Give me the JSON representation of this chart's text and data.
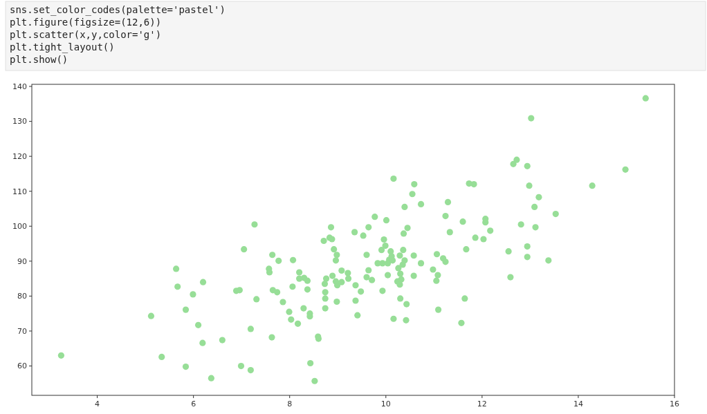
{
  "chart_data": {
    "type": "scatter",
    "annotations": [
      "sns.set_color_codes(palette='pastel')",
      "plt.figure(figsize=(12,6))",
      "plt.scatter(x,y,color='g')",
      "plt.tight_layout()",
      "plt.show()"
    ],
    "x": [
      3.25,
      5.12,
      5.34,
      5.64,
      5.67,
      5.84,
      5.84,
      5.99,
      6.1,
      6.2,
      6.19,
      6.37,
      6.6,
      6.89,
      6.96,
      6.99,
      7.05,
      7.19,
      7.19,
      7.27,
      7.31,
      7.57,
      7.58,
      7.63,
      7.64,
      7.65,
      7.74,
      7.77,
      7.86,
      7.99,
      8.03,
      8.06,
      8.07,
      8.17,
      8.2,
      8.2,
      8.29,
      8.3,
      8.37,
      8.37,
      8.42,
      8.42,
      8.43,
      8.52,
      8.59,
      8.6,
      8.71,
      8.73,
      8.74,
      8.74,
      8.74,
      8.76,
      8.83,
      8.86,
      8.88,
      8.89,
      8.92,
      8.96,
      8.98,
      8.96,
      8.99,
      8.98,
      9.08,
      9.08,
      9.21,
      9.22,
      9.35,
      9.37,
      9.37,
      9.41,
      9.48,
      9.53,
      9.6,
      9.6,
      9.64,
      9.64,
      9.71,
      9.77,
      9.83,
      9.91,
      9.93,
      9.93,
      9.96,
      9.99,
      10.01,
      10.04,
      10.04,
      10.07,
      10.1,
      10.12,
      10.14,
      10.16,
      10.16,
      10.24,
      10.26,
      10.29,
      10.29,
      10.3,
      10.3,
      10.32,
      10.35,
      10.36,
      10.37,
      10.39,
      10.39,
      10.42,
      10.43,
      10.45,
      10.55,
      10.58,
      10.58,
      10.59,
      10.73,
      10.73,
      10.98,
      11.06,
      11.05,
      11.08,
      11.09,
      11.19,
      11.24,
      11.24,
      11.29,
      11.33,
      11.57,
      11.6,
      11.64,
      11.67,
      11.73,
      11.83,
      11.86,
      12.03,
      12.07,
      12.07,
      12.17,
      12.55,
      12.59,
      12.65,
      12.72,
      12.81,
      12.94,
      12.94,
      12.94,
      12.98,
      13.02,
      13.09,
      13.11,
      13.18,
      13.38,
      13.53,
      14.29,
      14.98,
      15.4
    ],
    "values": [
      63.0,
      74.3,
      62.6,
      87.8,
      82.7,
      59.8,
      76.1,
      80.5,
      71.7,
      84.0,
      66.6,
      56.5,
      67.4,
      81.5,
      81.7,
      60.0,
      93.4,
      70.6,
      58.8,
      100.5,
      79.1,
      87.8,
      86.8,
      68.2,
      91.8,
      81.7,
      81.1,
      90.1,
      78.3,
      75.5,
      73.3,
      82.7,
      90.3,
      72.1,
      86.8,
      85.0,
      76.5,
      85.2,
      84.4,
      81.9,
      75.0,
      74.2,
      60.8,
      55.7,
      68.4,
      67.8,
      95.8,
      83.5,
      81.1,
      79.3,
      76.5,
      85.0,
      96.7,
      99.7,
      96.3,
      85.8,
      93.4,
      90.2,
      91.8,
      84.2,
      83.1,
      78.4,
      87.3,
      84.0,
      86.6,
      85.0,
      98.3,
      83.1,
      78.7,
      74.5,
      81.3,
      97.3,
      91.8,
      85.4,
      87.4,
      99.7,
      84.6,
      102.7,
      89.4,
      93.2,
      89.4,
      81.5,
      96.2,
      94.4,
      101.7,
      89.4,
      86.0,
      90.4,
      92.8,
      91.4,
      90.2,
      73.5,
      113.6,
      84.2,
      88.0,
      91.6,
      83.3,
      86.4,
      79.3,
      84.8,
      89.0,
      93.2,
      97.9,
      90.2,
      105.5,
      73.1,
      77.7,
      99.5,
      109.2,
      91.6,
      85.8,
      112.0,
      89.4,
      106.3,
      87.6,
      92.0,
      84.4,
      86.0,
      76.1,
      90.8,
      89.8,
      102.9,
      106.9,
      98.3,
      72.3,
      101.3,
      79.3,
      93.4,
      112.2,
      112.0,
      96.7,
      96.3,
      101.1,
      102.1,
      98.7,
      92.8,
      85.4,
      117.8,
      119.0,
      100.5,
      117.2,
      94.2,
      91.2,
      111.6,
      130.9,
      105.5,
      99.7,
      108.3,
      90.2,
      103.5,
      111.6,
      116.2,
      136.6
    ],
    "color": "#97de97",
    "marker": "circle",
    "grid": false,
    "xlim": [
      2.64,
      16.0
    ],
    "ylim": [
      51.6,
      140.6
    ],
    "xticks": [
      4,
      6,
      8,
      10,
      12,
      14,
      16
    ],
    "yticks": [
      60,
      70,
      80,
      90,
      100,
      110,
      120,
      130,
      140
    ]
  }
}
